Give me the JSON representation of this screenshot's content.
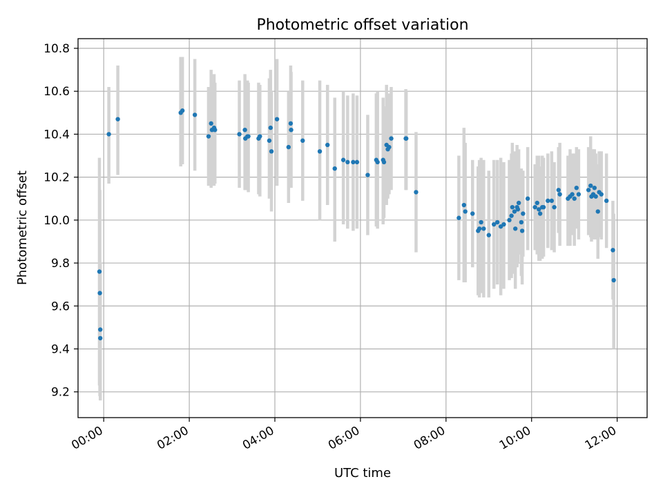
{
  "chart_data": {
    "type": "scatter",
    "title": "Photometric offset variation",
    "xlabel": "UTC time",
    "ylabel": "Photometric offset",
    "x_unit": "hours UTC",
    "xlim": [
      -0.6,
      12.7
    ],
    "ylim": [
      9.08,
      10.845
    ],
    "x_ticks": [
      0,
      2,
      4,
      6,
      8,
      10,
      12
    ],
    "x_tick_labels": [
      "00:00",
      "02:00",
      "04:00",
      "06:00",
      "08:00",
      "10:00",
      "12:00"
    ],
    "y_ticks": [
      9.2,
      9.4,
      9.6,
      9.8,
      10.0,
      10.2,
      10.4,
      10.6,
      10.8
    ],
    "y_tick_labels": [
      "9.2",
      "9.4",
      "9.6",
      "9.8",
      "10.0",
      "10.2",
      "10.4",
      "10.6",
      "10.8"
    ],
    "grid": true,
    "legend": "none",
    "colors": {
      "point": "#1f77b4",
      "errorbar": "#d3d3d3",
      "grid": "#b0b0b0"
    },
    "series": [
      {
        "points": [
          [
            -0.1,
            9.76,
            9.23,
            10.29
          ],
          [
            -0.09,
            9.66,
            9.18,
            10.14
          ],
          [
            -0.08,
            9.49,
            9.18,
            9.8
          ],
          [
            -0.08,
            9.45,
            9.16,
            9.74
          ],
          [
            0.12,
            10.4,
            10.17,
            10.62
          ],
          [
            0.33,
            10.47,
            10.21,
            10.72
          ],
          [
            1.8,
            10.5,
            10.25,
            10.76
          ],
          [
            1.84,
            10.51,
            10.26,
            10.76
          ],
          [
            2.13,
            10.49,
            10.23,
            10.75
          ],
          [
            2.45,
            10.39,
            10.16,
            10.62
          ],
          [
            2.51,
            10.45,
            10.15,
            10.7
          ],
          [
            2.53,
            10.42,
            10.17,
            10.64
          ],
          [
            2.58,
            10.43,
            10.16,
            10.68
          ],
          [
            2.6,
            10.42,
            10.17,
            10.64
          ],
          [
            3.17,
            10.4,
            10.15,
            10.65
          ],
          [
            3.3,
            10.42,
            10.14,
            10.68
          ],
          [
            3.31,
            10.38,
            10.14,
            10.62
          ],
          [
            3.36,
            10.39,
            10.14,
            10.65
          ],
          [
            3.38,
            10.39,
            10.13,
            10.64
          ],
          [
            3.62,
            10.38,
            10.12,
            10.64
          ],
          [
            3.65,
            10.39,
            10.11,
            10.63
          ],
          [
            3.87,
            10.37,
            10.1,
            10.66
          ],
          [
            3.9,
            10.43,
            10.15,
            10.7
          ],
          [
            3.92,
            10.32,
            10.04,
            10.6
          ],
          [
            4.05,
            10.47,
            10.16,
            10.75
          ],
          [
            4.32,
            10.34,
            10.08,
            10.6
          ],
          [
            4.37,
            10.45,
            10.17,
            10.72
          ],
          [
            4.38,
            10.42,
            10.15,
            10.69
          ],
          [
            4.65,
            10.37,
            10.09,
            10.65
          ],
          [
            5.05,
            10.32,
            10.0,
            10.65
          ],
          [
            5.23,
            10.35,
            10.07,
            10.63
          ],
          [
            5.4,
            10.24,
            9.9,
            10.57
          ],
          [
            5.6,
            10.28,
            9.98,
            10.6
          ],
          [
            5.7,
            10.27,
            9.96,
            10.58
          ],
          [
            5.83,
            10.27,
            9.95,
            10.59
          ],
          [
            5.92,
            10.27,
            9.96,
            10.58
          ],
          [
            6.17,
            10.21,
            9.93,
            10.49
          ],
          [
            6.37,
            10.28,
            9.97,
            10.59
          ],
          [
            6.4,
            10.27,
            9.96,
            10.6
          ],
          [
            6.53,
            10.28,
            9.98,
            10.57
          ],
          [
            6.55,
            10.27,
            10.01,
            10.53
          ],
          [
            6.61,
            10.35,
            10.07,
            10.63
          ],
          [
            6.64,
            10.33,
            10.1,
            10.56
          ],
          [
            6.67,
            10.34,
            10.12,
            10.59
          ],
          [
            6.72,
            10.38,
            10.14,
            10.62
          ],
          [
            7.06,
            10.38,
            10.14,
            10.61
          ],
          [
            7.07,
            10.38,
            10.14,
            10.6
          ],
          [
            7.3,
            10.13,
            9.85,
            10.41
          ],
          [
            8.3,
            10.01,
            9.72,
            10.3
          ],
          [
            8.42,
            10.07,
            9.71,
            10.43
          ],
          [
            8.45,
            10.04,
            9.71,
            10.36
          ],
          [
            8.62,
            10.03,
            9.78,
            10.28
          ],
          [
            8.75,
            9.95,
            9.65,
            10.25
          ],
          [
            8.78,
            9.96,
            9.64,
            10.28
          ],
          [
            8.82,
            9.99,
            9.66,
            10.29
          ],
          [
            8.88,
            9.96,
            9.64,
            10.28
          ],
          [
            9.0,
            9.93,
            9.64,
            10.23
          ],
          [
            9.12,
            9.98,
            9.68,
            10.28
          ],
          [
            9.2,
            9.99,
            9.7,
            10.28
          ],
          [
            9.28,
            9.97,
            9.65,
            10.29
          ],
          [
            9.35,
            9.98,
            9.68,
            10.27
          ],
          [
            9.48,
            10.0,
            9.72,
            10.28
          ],
          [
            9.53,
            10.02,
            9.73,
            10.31
          ],
          [
            9.55,
            10.06,
            9.75,
            10.36
          ],
          [
            9.6,
            10.04,
            9.76,
            10.32
          ],
          [
            9.62,
            9.96,
            9.68,
            10.25
          ],
          [
            9.66,
            10.06,
            9.78,
            10.35
          ],
          [
            9.68,
            10.05,
            9.8,
            10.3
          ],
          [
            9.7,
            10.08,
            9.84,
            10.33
          ],
          [
            9.76,
            9.99,
            9.74,
            10.24
          ],
          [
            9.78,
            9.95,
            9.7,
            10.2
          ],
          [
            9.8,
            10.03,
            9.83,
            10.23
          ],
          [
            9.91,
            10.1,
            9.86,
            10.34
          ],
          [
            10.08,
            10.06,
            9.86,
            10.26
          ],
          [
            10.13,
            10.08,
            9.84,
            10.3
          ],
          [
            10.17,
            10.05,
            9.81,
            10.3
          ],
          [
            10.2,
            10.03,
            9.81,
            10.25
          ],
          [
            10.25,
            10.06,
            9.82,
            10.3
          ],
          [
            10.28,
            10.06,
            9.83,
            10.29
          ],
          [
            10.38,
            10.09,
            9.87,
            10.31
          ],
          [
            10.47,
            10.09,
            9.86,
            10.32
          ],
          [
            10.53,
            10.06,
            9.85,
            10.27
          ],
          [
            10.63,
            10.14,
            9.94,
            10.34
          ],
          [
            10.66,
            10.12,
            9.88,
            10.36
          ],
          [
            10.85,
            10.1,
            9.88,
            10.3
          ],
          [
            10.9,
            10.11,
            9.88,
            10.33
          ],
          [
            10.95,
            10.12,
            9.93,
            10.31
          ],
          [
            11.0,
            10.1,
            9.88,
            10.31
          ],
          [
            11.05,
            10.15,
            9.96,
            10.34
          ],
          [
            11.1,
            10.12,
            9.91,
            10.33
          ],
          [
            11.33,
            10.14,
            9.93,
            10.34
          ],
          [
            11.38,
            10.16,
            9.92,
            10.39
          ],
          [
            11.4,
            10.11,
            9.9,
            10.33
          ],
          [
            11.44,
            10.12,
            9.91,
            10.33
          ],
          [
            11.47,
            10.15,
            9.96,
            10.33
          ],
          [
            11.5,
            10.11,
            9.91,
            10.31
          ],
          [
            11.55,
            10.04,
            9.82,
            10.26
          ],
          [
            11.58,
            10.13,
            9.92,
            10.32
          ],
          [
            11.63,
            10.12,
            9.91,
            10.32
          ],
          [
            11.75,
            10.09,
            9.87,
            10.31
          ],
          [
            11.9,
            9.86,
            9.63,
            10.09
          ],
          [
            11.92,
            9.72,
            9.4,
            10.03
          ]
        ]
      }
    ],
    "point_format": [
      "x_hours",
      "y",
      "y_low",
      "y_high"
    ]
  }
}
